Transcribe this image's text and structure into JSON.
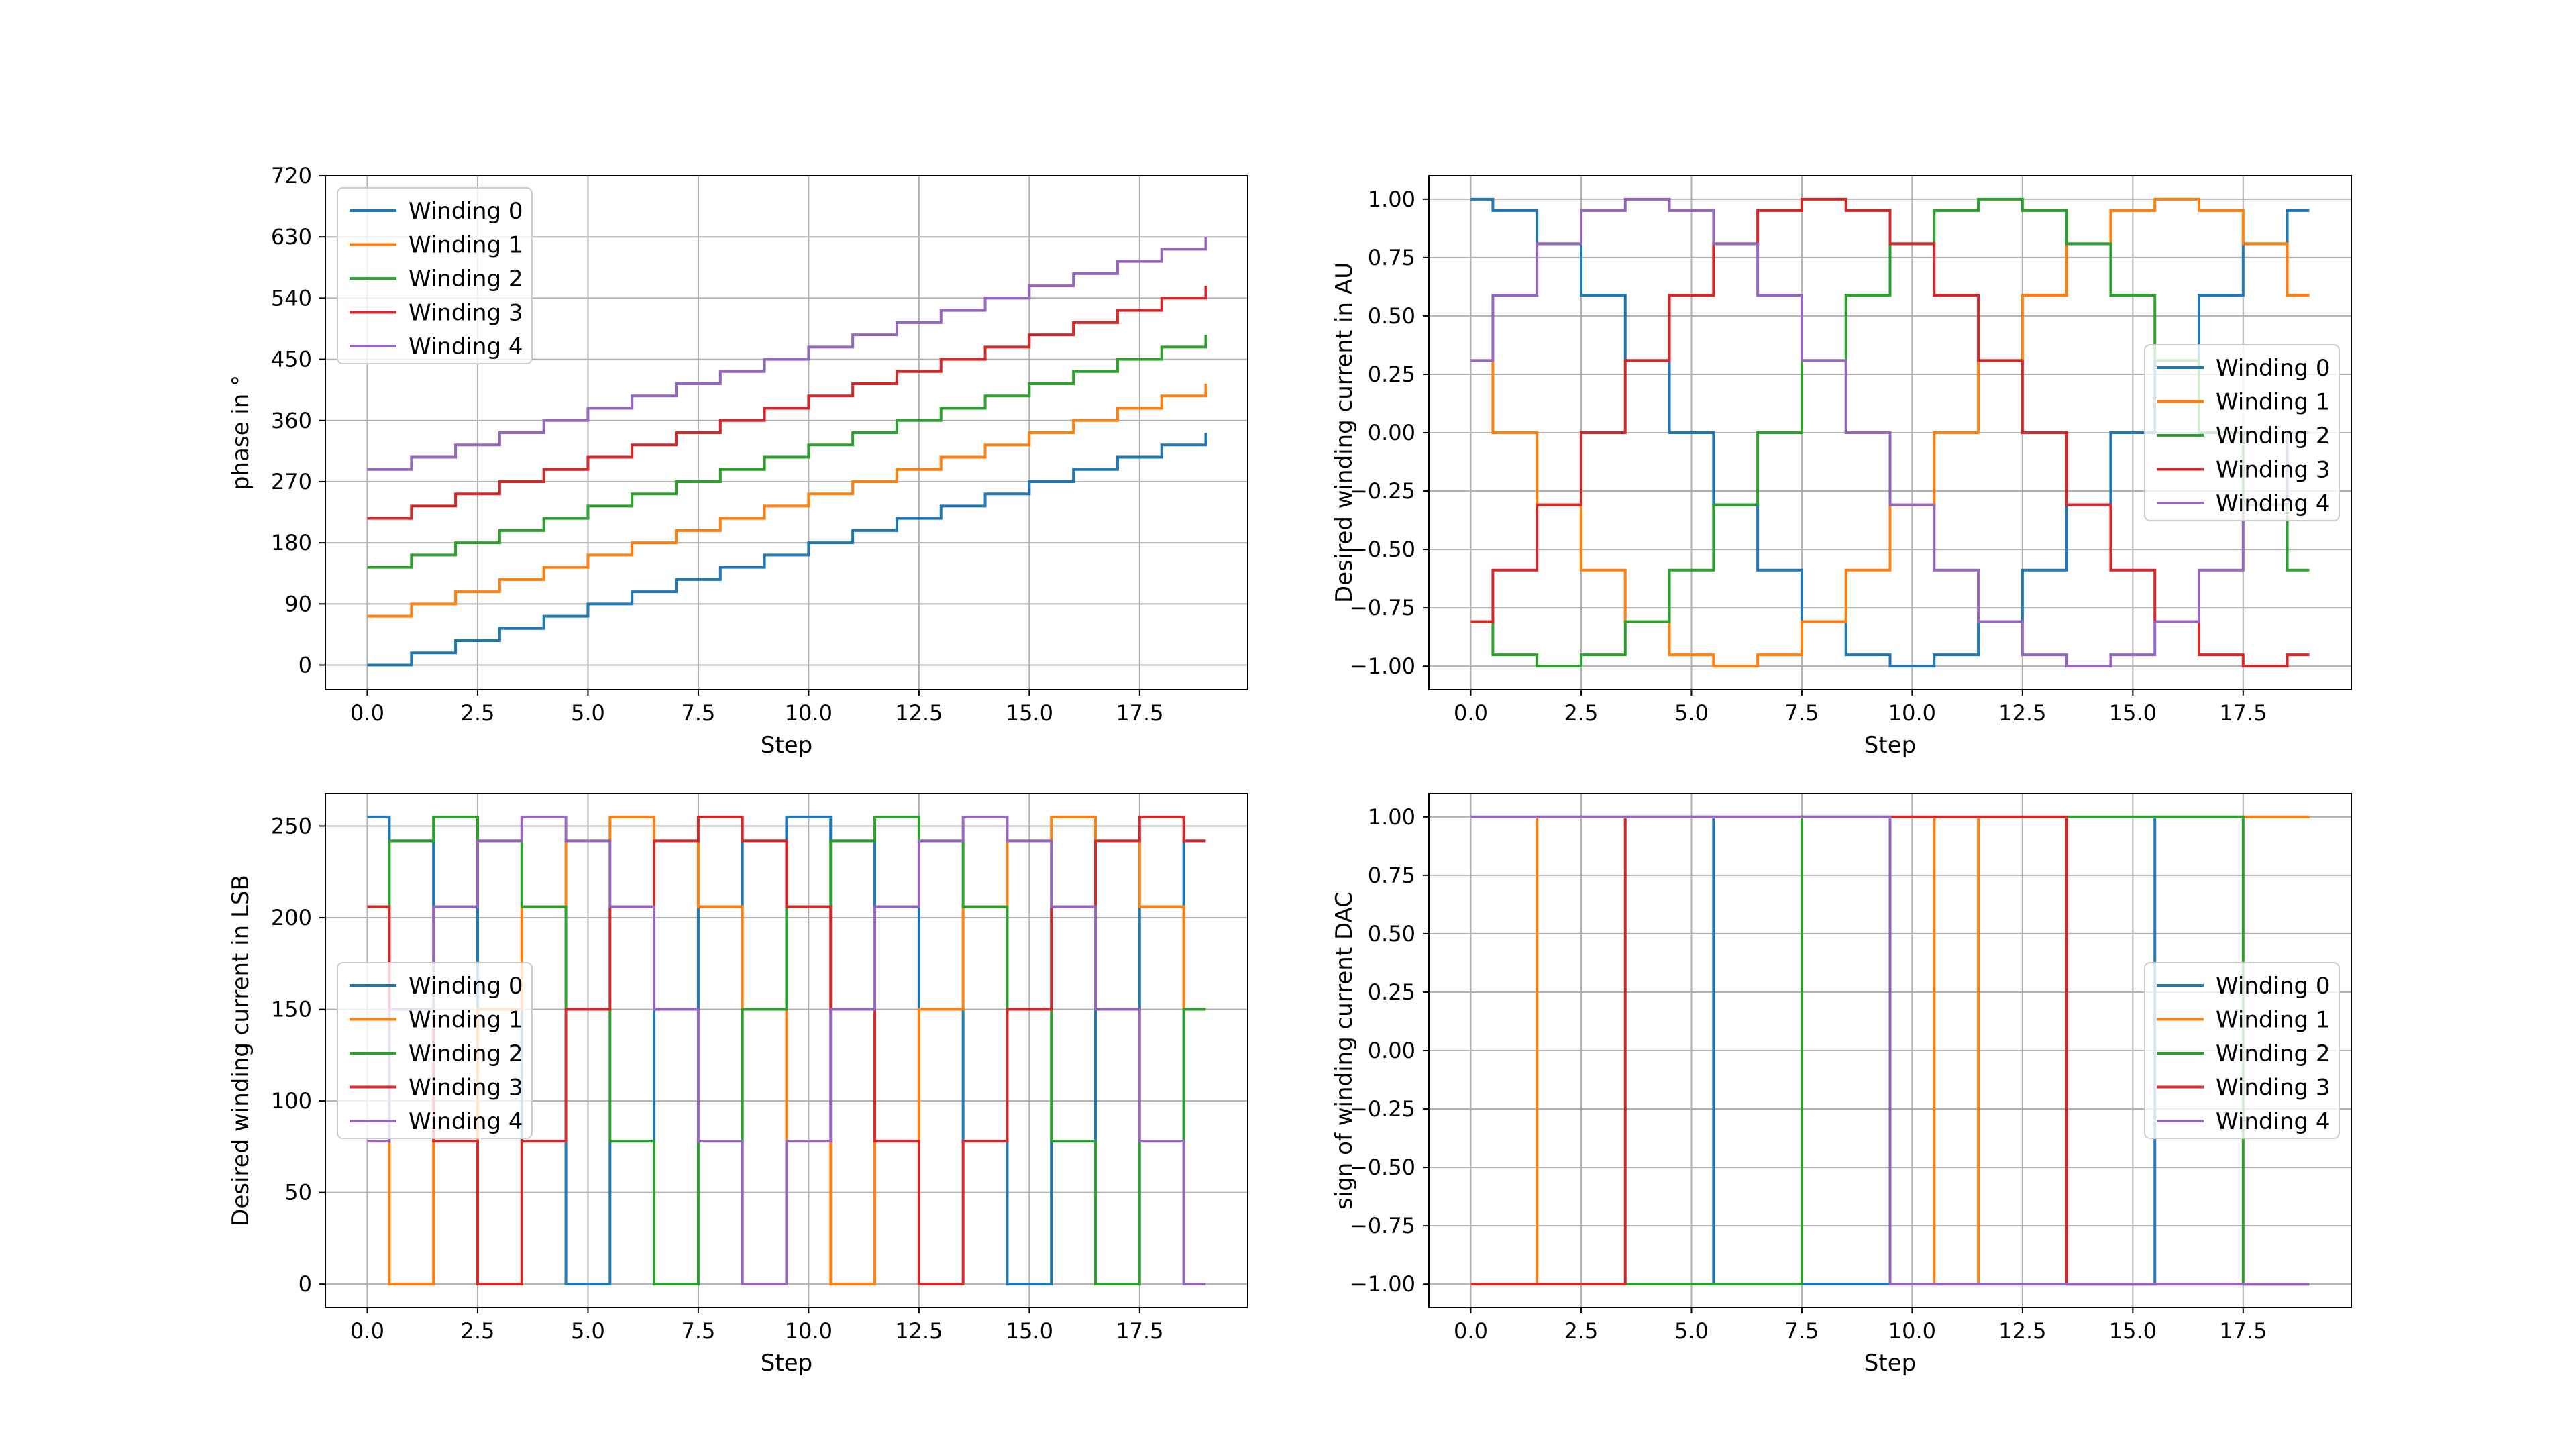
{
  "colors": [
    "#1f77b4",
    "#ff7f0e",
    "#2ca02c",
    "#d62728",
    "#9467bd"
  ],
  "chart_data": [
    {
      "type": "line",
      "step": "post",
      "xlabel": "Step",
      "ylabel": "phase in °",
      "xlim": [
        -0.95,
        19.95
      ],
      "ylim": [
        -36,
        720
      ],
      "xticks": [
        0,
        2.5,
        5,
        7.5,
        10,
        12.5,
        15,
        17.5
      ],
      "xtick_labels": [
        "0.0",
        "2.5",
        "5.0",
        "7.5",
        "10.0",
        "12.5",
        "15.0",
        "17.5"
      ],
      "yticks": [
        0,
        90,
        180,
        270,
        360,
        450,
        540,
        630,
        720
      ],
      "ytick_labels": [
        "0",
        "90",
        "180",
        "270",
        "360",
        "450",
        "540",
        "630",
        "720"
      ],
      "grid": true,
      "legend": "upper left",
      "x": [
        0,
        1,
        2,
        3,
        4,
        5,
        6,
        7,
        8,
        9,
        10,
        11,
        12,
        13,
        14,
        15,
        16,
        17,
        18,
        19
      ],
      "series": [
        {
          "name": "Winding 0",
          "values": [
            0,
            18,
            36,
            54,
            72,
            90,
            108,
            126,
            144,
            162,
            180,
            198,
            216,
            234,
            252,
            270,
            288,
            306,
            324,
            342
          ]
        },
        {
          "name": "Winding 1",
          "values": [
            72,
            90,
            108,
            126,
            144,
            162,
            180,
            198,
            216,
            234,
            252,
            270,
            288,
            306,
            324,
            342,
            360,
            378,
            396,
            414
          ]
        },
        {
          "name": "Winding 2",
          "values": [
            144,
            162,
            180,
            198,
            216,
            234,
            252,
            270,
            288,
            306,
            324,
            342,
            360,
            378,
            396,
            414,
            432,
            450,
            468,
            486
          ]
        },
        {
          "name": "Winding 3",
          "values": [
            216,
            234,
            252,
            270,
            288,
            306,
            324,
            342,
            360,
            378,
            396,
            414,
            432,
            450,
            468,
            486,
            504,
            522,
            540,
            558
          ]
        },
        {
          "name": "Winding 4",
          "values": [
            288,
            306,
            324,
            342,
            360,
            378,
            396,
            414,
            432,
            450,
            468,
            486,
            504,
            522,
            540,
            558,
            576,
            594,
            612,
            630
          ]
        }
      ]
    },
    {
      "type": "line",
      "step": "mid",
      "xlabel": "Step",
      "ylabel": "Desired winding current in AU",
      "xlim": [
        -0.95,
        19.95
      ],
      "ylim": [
        -1.1,
        1.1
      ],
      "xticks": [
        0,
        2.5,
        5,
        7.5,
        10,
        12.5,
        15,
        17.5
      ],
      "xtick_labels": [
        "0.0",
        "2.5",
        "5.0",
        "7.5",
        "10.0",
        "12.5",
        "15.0",
        "17.5"
      ],
      "yticks": [
        -1,
        -0.75,
        -0.5,
        -0.25,
        0,
        0.25,
        0.5,
        0.75,
        1
      ],
      "ytick_labels": [
        "−1.00",
        "−0.75",
        "−0.50",
        "−0.25",
        "0.00",
        "0.25",
        "0.50",
        "0.75",
        "1.00"
      ],
      "grid": true,
      "legend": "center right",
      "x": [
        0,
        1,
        2,
        3,
        4,
        5,
        6,
        7,
        8,
        9,
        10,
        11,
        12,
        13,
        14,
        15,
        16,
        17,
        18,
        19
      ],
      "series": [
        {
          "name": "Winding 0",
          "values": [
            1,
            0.951,
            0.809,
            0.588,
            0.309,
            0,
            -0.309,
            -0.588,
            -0.809,
            -0.951,
            -1,
            -0.951,
            -0.809,
            -0.588,
            -0.309,
            0,
            0.309,
            0.588,
            0.809,
            0.951
          ]
        },
        {
          "name": "Winding 1",
          "values": [
            0.309,
            0,
            -0.309,
            -0.588,
            -0.809,
            -0.951,
            -1,
            -0.951,
            -0.809,
            -0.588,
            -0.309,
            0,
            0.309,
            0.588,
            0.809,
            0.951,
            1,
            0.951,
            0.809,
            0.588
          ]
        },
        {
          "name": "Winding 2",
          "values": [
            -0.809,
            -0.951,
            -1,
            -0.951,
            -0.809,
            -0.588,
            -0.309,
            0,
            0.309,
            0.588,
            0.809,
            0.951,
            1,
            0.951,
            0.809,
            0.588,
            0.309,
            0,
            -0.309,
            -0.588
          ]
        },
        {
          "name": "Winding 3",
          "values": [
            -0.809,
            -0.588,
            -0.309,
            0,
            0.309,
            0.588,
            0.809,
            0.951,
            1,
            0.951,
            0.809,
            0.588,
            0.309,
            0,
            -0.309,
            -0.588,
            -0.809,
            -0.951,
            -1,
            -0.951
          ]
        },
        {
          "name": "Winding 4",
          "values": [
            0.309,
            0.588,
            0.809,
            0.951,
            1,
            0.951,
            0.809,
            0.588,
            0.309,
            0,
            -0.309,
            -0.588,
            -0.809,
            -0.951,
            -1,
            -0.951,
            -0.809,
            -0.588,
            -0.309,
            0
          ]
        }
      ]
    },
    {
      "type": "line",
      "step": "mid",
      "xlabel": "Step",
      "ylabel": "Desired winding current in LSB",
      "xlim": [
        -0.95,
        19.95
      ],
      "ylim": [
        -12.75,
        267.75
      ],
      "xticks": [
        0,
        2.5,
        5,
        7.5,
        10,
        12.5,
        15,
        17.5
      ],
      "xtick_labels": [
        "0.0",
        "2.5",
        "5.0",
        "7.5",
        "10.0",
        "12.5",
        "15.0",
        "17.5"
      ],
      "yticks": [
        0,
        50,
        100,
        150,
        200,
        250
      ],
      "ytick_labels": [
        "0",
        "50",
        "100",
        "150",
        "200",
        "250"
      ],
      "grid": true,
      "legend": "center left",
      "x": [
        0,
        1,
        2,
        3,
        4,
        5,
        6,
        7,
        8,
        9,
        10,
        11,
        12,
        13,
        14,
        15,
        16,
        17,
        18,
        19
      ],
      "series": [
        {
          "name": "Winding 0",
          "values": [
            255,
            242,
            206,
            150,
            78,
            0,
            78,
            150,
            206,
            242,
            255,
            242,
            206,
            150,
            78,
            0,
            78,
            150,
            206,
            242
          ]
        },
        {
          "name": "Winding 1",
          "values": [
            78,
            0,
            78,
            150,
            206,
            242,
            255,
            242,
            206,
            150,
            78,
            0,
            78,
            150,
            206,
            242,
            255,
            242,
            206,
            150
          ]
        },
        {
          "name": "Winding 2",
          "values": [
            206,
            242,
            255,
            242,
            206,
            150,
            78,
            0,
            78,
            150,
            206,
            242,
            255,
            242,
            206,
            150,
            78,
            0,
            78,
            150
          ]
        },
        {
          "name": "Winding 3",
          "values": [
            206,
            150,
            78,
            0,
            78,
            150,
            206,
            242,
            255,
            242,
            206,
            150,
            78,
            0,
            78,
            150,
            206,
            242,
            255,
            242
          ]
        },
        {
          "name": "Winding 4",
          "values": [
            78,
            150,
            206,
            242,
            255,
            242,
            206,
            150,
            78,
            0,
            78,
            150,
            206,
            242,
            255,
            242,
            206,
            150,
            78,
            0
          ]
        }
      ]
    },
    {
      "type": "line",
      "step": "mid",
      "xlabel": "Step",
      "ylabel": "sign of winding current DAC",
      "xlim": [
        -0.95,
        19.95
      ],
      "ylim": [
        -1.1,
        1.1
      ],
      "xticks": [
        0,
        2.5,
        5,
        7.5,
        10,
        12.5,
        15,
        17.5
      ],
      "xtick_labels": [
        "0.0",
        "2.5",
        "5.0",
        "7.5",
        "10.0",
        "12.5",
        "15.0",
        "17.5"
      ],
      "yticks": [
        -1,
        -0.75,
        -0.5,
        -0.25,
        0,
        0.25,
        0.5,
        0.75,
        1
      ],
      "ytick_labels": [
        "−1.00",
        "−0.75",
        "−0.50",
        "−0.25",
        "0.00",
        "0.25",
        "0.50",
        "0.75",
        "1.00"
      ],
      "grid": true,
      "legend": "center right",
      "x": [
        0,
        1,
        2,
        3,
        4,
        5,
        6,
        7,
        8,
        9,
        10,
        11,
        12,
        13,
        14,
        15,
        16,
        17,
        18,
        19
      ],
      "series": [
        {
          "name": "Winding 0",
          "values": [
            1,
            1,
            1,
            1,
            1,
            1,
            -1,
            -1,
            -1,
            -1,
            -1,
            -1,
            -1,
            -1,
            -1,
            -1,
            1,
            1,
            1,
            1
          ]
        },
        {
          "name": "Winding 1",
          "values": [
            -1,
            -1,
            1,
            1,
            1,
            1,
            1,
            1,
            1,
            1,
            1,
            -1,
            1,
            1,
            1,
            1,
            1,
            1,
            1,
            1
          ]
        },
        {
          "name": "Winding 2",
          "values": [
            -1,
            -1,
            -1,
            -1,
            -1,
            -1,
            -1,
            -1,
            1,
            1,
            1,
            1,
            1,
            1,
            1,
            1,
            1,
            1,
            -1,
            -1
          ]
        },
        {
          "name": "Winding 3",
          "values": [
            -1,
            -1,
            -1,
            -1,
            1,
            1,
            1,
            1,
            1,
            1,
            1,
            1,
            1,
            1,
            -1,
            -1,
            -1,
            -1,
            -1,
            -1
          ]
        },
        {
          "name": "Winding 4",
          "values": [
            1,
            1,
            1,
            1,
            1,
            1,
            1,
            1,
            1,
            1,
            -1,
            -1,
            -1,
            -1,
            -1,
            -1,
            -1,
            -1,
            -1,
            -1
          ]
        }
      ]
    }
  ]
}
